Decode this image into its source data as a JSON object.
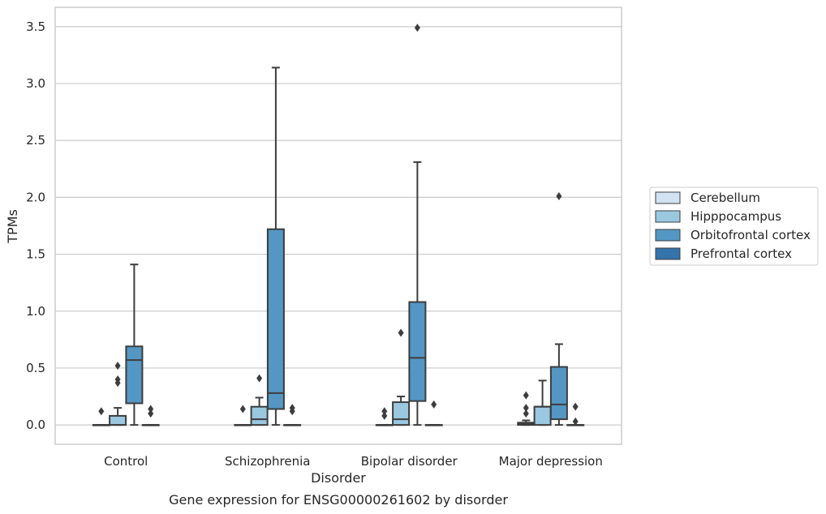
{
  "chart_data": {
    "type": "box",
    "title": "",
    "caption": "Gene expression for ENSG00000261602 by disorder",
    "xlabel": "Disorder",
    "ylabel": "TPMs",
    "ylim": [
      -0.17,
      3.67
    ],
    "yticks": [
      "0.0",
      "0.5",
      "1.0",
      "1.5",
      "2.0",
      "2.5",
      "3.0",
      "3.5"
    ],
    "grid": "horizontal",
    "legend_position": "right",
    "categories": [
      "Control",
      "Schizophrenia",
      "Bipolar disorder",
      "Major depression"
    ],
    "series": [
      {
        "name": "Cerebellum",
        "color": "#d1e2f2",
        "boxes": [
          {
            "q1": 0,
            "median": 0,
            "q3": 0,
            "whisker_low": 0,
            "whisker_high": 0,
            "outliers": [
              0.12
            ]
          },
          {
            "q1": 0,
            "median": 0,
            "q3": 0,
            "whisker_low": 0,
            "whisker_high": 0,
            "outliers": [
              0.14
            ]
          },
          {
            "q1": 0,
            "median": 0,
            "q3": 0,
            "whisker_low": 0,
            "whisker_high": 0,
            "outliers": [
              0.08,
              0.12
            ]
          },
          {
            "q1": 0,
            "median": 0.01,
            "q3": 0.02,
            "whisker_low": 0,
            "whisker_high": 0.04,
            "outliers": [
              0.1,
              0.15,
              0.26
            ]
          }
        ]
      },
      {
        "name": "Hipppocampus",
        "color": "#9ac8e0",
        "boxes": [
          {
            "q1": 0,
            "median": 0,
            "q3": 0.08,
            "whisker_low": 0,
            "whisker_high": 0.15,
            "outliers": [
              0.37,
              0.4,
              0.52
            ]
          },
          {
            "q1": 0,
            "median": 0.05,
            "q3": 0.16,
            "whisker_low": 0,
            "whisker_high": 0.24,
            "outliers": [
              0.41
            ]
          },
          {
            "q1": 0,
            "median": 0.05,
            "q3": 0.2,
            "whisker_low": 0,
            "whisker_high": 0.25,
            "outliers": [
              0.81
            ]
          },
          {
            "q1": 0,
            "median": 0.16,
            "q3": 0.16,
            "whisker_low": 0,
            "whisker_high": 0.39,
            "outliers": []
          }
        ]
      },
      {
        "name": "Orbitofrontal cortex",
        "color": "#5497c4",
        "boxes": [
          {
            "q1": 0.19,
            "median": 0.57,
            "q3": 0.69,
            "whisker_low": 0,
            "whisker_high": 1.41,
            "outliers": []
          },
          {
            "q1": 0.14,
            "median": 0.28,
            "q3": 1.72,
            "whisker_low": 0,
            "whisker_high": 3.14,
            "outliers": []
          },
          {
            "q1": 0.21,
            "median": 0.59,
            "q3": 1.08,
            "whisker_low": 0,
            "whisker_high": 2.31,
            "outliers": [
              3.49
            ]
          },
          {
            "q1": 0.05,
            "median": 0.18,
            "q3": 0.51,
            "whisker_low": 0,
            "whisker_high": 0.71,
            "outliers": [
              2.01
            ]
          }
        ]
      },
      {
        "name": "Prefrontal cortex",
        "color": "#3473ab",
        "boxes": [
          {
            "q1": 0,
            "median": 0,
            "q3": 0,
            "whisker_low": 0,
            "whisker_high": 0,
            "outliers": [
              0.1,
              0.14
            ]
          },
          {
            "q1": 0,
            "median": 0,
            "q3": 0,
            "whisker_low": 0,
            "whisker_high": 0,
            "outliers": [
              0.12,
              0.15
            ]
          },
          {
            "q1": 0,
            "median": 0,
            "q3": 0,
            "whisker_low": 0,
            "whisker_high": 0,
            "outliers": [
              0.18
            ]
          },
          {
            "q1": 0,
            "median": 0,
            "q3": 0,
            "whisker_low": 0,
            "whisker_high": 0,
            "outliers": [
              0.03,
              0.16
            ]
          }
        ]
      }
    ]
  }
}
